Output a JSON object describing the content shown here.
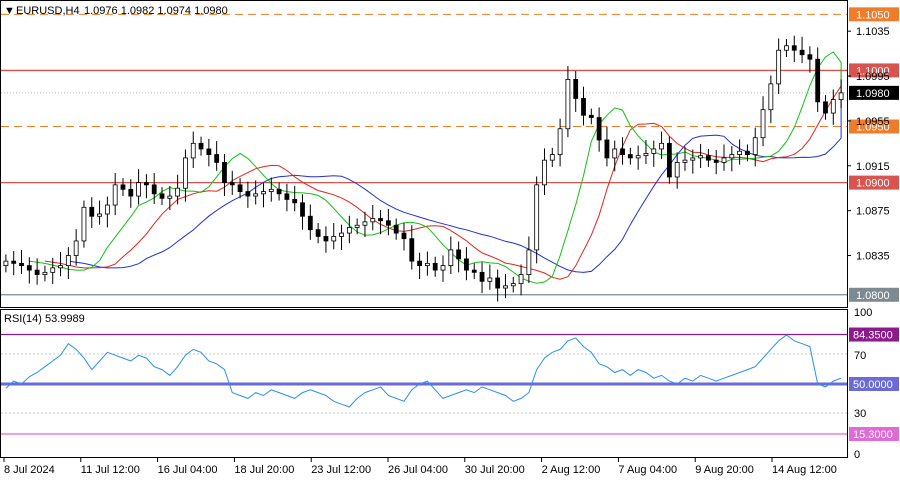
{
  "header": {
    "symbol": "EURUSD,H4",
    "ohlc": "1.0976 1.0982 1.0974 1.0980"
  },
  "rsi_header": "RSI(14) 53.9989",
  "colors": {
    "bull": "#ffffff",
    "bear": "#000000",
    "resistance": "#d9534f",
    "target_dashed": "#f07c2a",
    "support_gray": "#7d8a91",
    "alligator_jaw": "#1f2fd6",
    "alligator_teeth": "#e0261b",
    "alligator_lips": "#11c211",
    "rsi_line": "#2a8ff0",
    "rsi_over": "#8b1a8b",
    "rsi_mid": "#6a6ad8",
    "rsi_under": "#e06ad8"
  },
  "chart_data": [
    {
      "type": "candlestick",
      "title": "EURUSD,H4",
      "ylim": [
        1.079,
        1.1061
      ],
      "price_ticks": [
        "1.1035",
        "1.0995",
        "1.0955",
        "1.0915",
        "1.0875",
        "1.0835"
      ],
      "x_ticks": [
        "8 Jul 2024",
        "11 Jul 12:00",
        "16 Jul 04:00",
        "18 Jul 20:00",
        "23 Jul 12:00",
        "26 Jul 04:00",
        "30 Jul 20:00",
        "2 Aug 12:00",
        "7 Aug 04:00",
        "9 Aug 20:00",
        "14 Aug 12:00"
      ],
      "levels": [
        {
          "value": 1.105,
          "label": "1.1050",
          "style": "dashed",
          "color": "#f07c2a"
        },
        {
          "value": 1.1,
          "label": "1.1000",
          "style": "solid",
          "color": "#d9534f"
        },
        {
          "value": 1.098,
          "label": "1.0980",
          "style": "current",
          "color": "#000000"
        },
        {
          "value": 1.095,
          "label": "1.0950",
          "style": "dashed",
          "color": "#f07c2a"
        },
        {
          "value": 1.09,
          "label": "1.0900",
          "style": "solid",
          "color": "#d9534f"
        },
        {
          "value": 1.08,
          "label": "1.0800",
          "style": "solid",
          "color": "#7d8a91"
        }
      ],
      "close_series": [
        1.083,
        1.0828,
        1.0826,
        1.0822,
        1.0818,
        1.082,
        1.0824,
        1.0826,
        1.0835,
        1.0848,
        1.0878,
        1.087,
        1.0872,
        1.088,
        1.0898,
        1.0894,
        1.0888,
        1.09,
        1.0898,
        1.089,
        1.0886,
        1.0888,
        1.0895,
        1.0922,
        1.0935,
        1.093,
        1.0925,
        1.0918,
        1.09,
        1.0898,
        1.0892,
        1.0888,
        1.089,
        1.0892,
        1.0894,
        1.089,
        1.0885,
        1.0882,
        1.087,
        1.0858,
        1.0852,
        1.0848,
        1.0852,
        1.0855,
        1.086,
        1.0862,
        1.0865,
        1.0868,
        1.0866,
        1.0862,
        1.0855,
        1.085,
        1.083,
        1.0826,
        1.0828,
        1.0822,
        1.0826,
        1.084,
        1.0832,
        1.0822,
        1.082,
        1.0812,
        1.0815,
        1.0806,
        1.0808,
        1.081,
        1.0818,
        1.084,
        1.0898,
        1.092,
        1.0925,
        1.0948,
        1.0992,
        1.0975,
        1.096,
        1.0958,
        1.0938,
        1.0922,
        1.093,
        1.0925,
        1.0922,
        1.0924,
        1.0926,
        1.093,
        1.0935,
        1.0905,
        1.0918,
        1.092,
        1.0922,
        1.0924,
        1.092,
        1.0918,
        1.0922,
        1.0925,
        1.0928,
        1.0925,
        1.094,
        1.0965,
        1.0988,
        1.1018,
        1.1022,
        1.1018,
        1.1014,
        1.101,
        1.0972,
        1.0962,
        1.0974,
        1.098
      ],
      "alligator": {
        "jaw_name": "jaw",
        "teeth_name": "teeth",
        "lips_name": "lips"
      }
    },
    {
      "type": "line",
      "title": "RSI(14) 53.9989",
      "ylim": [
        0,
        100
      ],
      "y_ticks": [
        "100",
        "70",
        "30",
        "0"
      ],
      "levels": [
        {
          "value": 84.35,
          "label": "84.3500",
          "color": "#8b1a8b"
        },
        {
          "value": 50.0,
          "label": "50.0000",
          "color": "#6a6ad8"
        },
        {
          "value": 15.3,
          "label": "15.3000",
          "color": "#e06ad8"
        }
      ],
      "values": [
        47,
        52,
        50,
        55,
        58,
        62,
        66,
        70,
        78,
        74,
        68,
        60,
        66,
        72,
        70,
        68,
        66,
        70,
        68,
        62,
        60,
        56,
        62,
        70,
        74,
        72,
        66,
        64,
        60,
        44,
        42,
        40,
        44,
        42,
        46,
        44,
        42,
        40,
        44,
        46,
        44,
        42,
        38,
        36,
        34,
        40,
        44,
        46,
        48,
        42,
        40,
        38,
        46,
        50,
        52,
        46,
        40,
        42,
        44,
        46,
        44,
        48,
        46,
        44,
        42,
        38,
        40,
        44,
        60,
        68,
        72,
        74,
        80,
        82,
        76,
        72,
        64,
        62,
        58,
        60,
        56,
        60,
        58,
        54,
        56,
        52,
        50,
        54,
        52,
        56,
        54,
        52,
        54,
        56,
        58,
        60,
        62,
        68,
        74,
        80,
        84,
        80,
        78,
        76,
        50,
        48,
        52,
        54
      ]
    }
  ]
}
